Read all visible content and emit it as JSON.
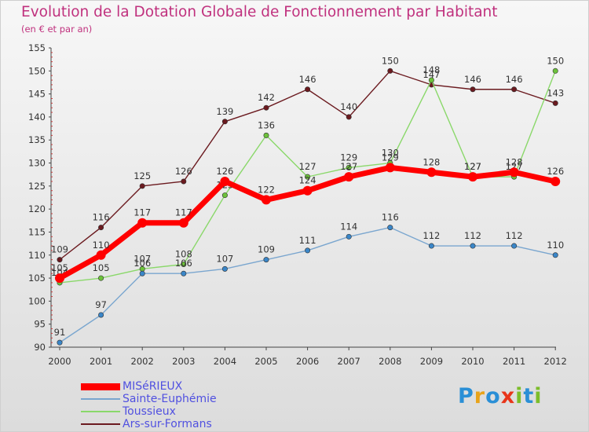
{
  "title": "Evolution de la Dotation Globale de Fonctionnement par Habitant",
  "subtitle": "(en € et par an)",
  "brand": {
    "text": "Proxiti",
    "letter_colors": [
      "#2a8fd6",
      "#e8a31a",
      "#2a8fd6",
      "#e8351a",
      "#7cbd2a",
      "#2a8fd6",
      "#7cbd2a"
    ]
  },
  "chart_data": {
    "type": "line",
    "x": [
      "2000",
      "2001",
      "2002",
      "2003",
      "2004",
      "2005",
      "2006",
      "2007",
      "2008",
      "2009",
      "2010",
      "2011",
      "2012"
    ],
    "ylim": [
      90,
      155
    ],
    "yticks": [
      "90",
      "95",
      "100",
      "105",
      "110",
      "115",
      "120",
      "125",
      "130",
      "135",
      "140",
      "145",
      "150",
      "155"
    ],
    "grid": false,
    "legend_position": "bottom-left",
    "series": [
      {
        "name": "Ars-sur-Formans",
        "color": "#6b1a1f",
        "values": [
          109,
          116,
          125,
          126,
          139,
          142,
          146,
          140,
          150,
          147,
          146,
          146,
          143
        ],
        "labels": [
          "109",
          "116",
          "125",
          "126",
          "139",
          "142",
          "146",
          "140",
          "150",
          "147",
          "146",
          "146",
          "143"
        ]
      },
      {
        "name": "Toussieux",
        "color": "#8ad86a",
        "marker_color": "#6cc23a",
        "values": [
          104,
          105,
          107,
          108,
          123,
          136,
          127,
          129,
          130,
          148,
          127,
          127,
          150
        ],
        "labels": [
          "104",
          "105",
          "107",
          "108",
          "123",
          "136",
          "127",
          "129",
          "130",
          "148",
          "127",
          "127",
          "150"
        ]
      },
      {
        "name": "Sainte-Euphémie",
        "color": "#7aa6cf",
        "marker_color": "#3a86c8",
        "values": [
          91,
          97,
          106,
          106,
          107,
          109,
          111,
          114,
          116,
          112,
          112,
          112,
          110
        ],
        "labels": [
          "91",
          "97",
          "106",
          "106",
          "107",
          "109",
          "111",
          "114",
          "116",
          "112",
          "112",
          "112",
          "110"
        ]
      },
      {
        "name": "MISéRIEUX",
        "color": "#ff0000",
        "thick": true,
        "values": [
          105,
          110,
          117,
          117,
          126,
          122,
          124,
          127,
          129,
          128,
          127,
          128,
          126
        ],
        "labels": [
          "105",
          "110",
          "117",
          "117",
          "126",
          "122",
          "124",
          "127",
          "129",
          "128",
          "127",
          "128",
          "126"
        ]
      }
    ],
    "legend": [
      {
        "name": "MISéRIEUX",
        "color": "#ff0000",
        "thick": true
      },
      {
        "name": "Sainte-Euphémie",
        "color": "#7aa6cf",
        "thick": false
      },
      {
        "name": "Toussieux",
        "color": "#8ad86a",
        "thick": false
      },
      {
        "name": "Ars-sur-Formans",
        "color": "#6b1a1f",
        "thick": false
      }
    ]
  }
}
